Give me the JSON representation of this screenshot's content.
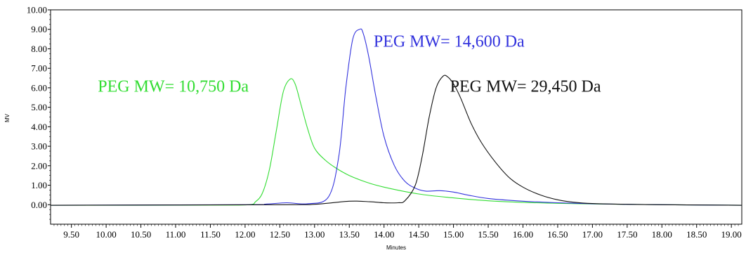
{
  "chart_data": {
    "type": "line",
    "title": "",
    "xlabel": "Minutes",
    "ylabel": "MV",
    "xlim": [
      9.2,
      19.15
    ],
    "ylim": [
      -1.0,
      10.0
    ],
    "x_ticks": [
      9.5,
      10.0,
      10.5,
      11.0,
      11.5,
      12.0,
      12.5,
      13.0,
      13.5,
      14.0,
      14.5,
      15.0,
      15.5,
      16.0,
      16.5,
      17.0,
      17.5,
      18.0,
      18.5,
      19.0
    ],
    "x_tick_labels": [
      "9.50",
      "10.00",
      "10.50",
      "11.00",
      "11.50",
      "12.00",
      "12.50",
      "13.00",
      "13.50",
      "14.00",
      "14.50",
      "15.00",
      "15.50",
      "16.00",
      "16.50",
      "17.00",
      "17.50",
      "18.00",
      "18.50",
      "19.00"
    ],
    "y_ticks": [
      0,
      1,
      2,
      3,
      4,
      5,
      6,
      7,
      8,
      9,
      10
    ],
    "y_tick_labels": [
      "0.00",
      "1.00",
      "2.00",
      "3.00",
      "4.00",
      "5.00",
      "6.00",
      "7.00",
      "8.00",
      "9.00",
      "10.00"
    ],
    "grid": false,
    "legend": "none",
    "series": [
      {
        "color": "#33dd33",
        "x": [
          9.2,
          11.5,
          12.05,
          12.15,
          12.25,
          12.35,
          12.45,
          12.55,
          12.65,
          12.72,
          12.8,
          12.9,
          13.0,
          13.15,
          13.3,
          13.5,
          13.75,
          14.0,
          14.5,
          15.0,
          15.5,
          16.0,
          16.5,
          17.0,
          17.5,
          18.0,
          19.15
        ],
        "y": [
          -0.03,
          -0.02,
          0.0,
          0.15,
          0.6,
          1.8,
          3.8,
          5.8,
          6.45,
          6.2,
          5.2,
          3.9,
          2.9,
          2.3,
          1.9,
          1.5,
          1.15,
          0.9,
          0.55,
          0.35,
          0.2,
          0.12,
          0.07,
          0.04,
          0.02,
          0.0,
          -0.03
        ]
      },
      {
        "color": "#3333dd",
        "x": [
          9.2,
          12.0,
          12.3,
          12.6,
          12.9,
          13.2,
          13.35,
          13.45,
          13.55,
          13.65,
          13.7,
          13.78,
          13.88,
          14.0,
          14.15,
          14.3,
          14.45,
          14.6,
          14.8,
          15.0,
          15.2,
          15.5,
          16.0,
          16.5,
          17.0,
          17.5,
          18.0,
          19.15
        ],
        "y": [
          -0.03,
          0.0,
          0.03,
          0.1,
          0.05,
          0.4,
          2.5,
          6.0,
          8.5,
          9.0,
          8.8,
          7.6,
          5.6,
          3.5,
          2.0,
          1.2,
          0.85,
          0.7,
          0.72,
          0.65,
          0.5,
          0.32,
          0.18,
          0.1,
          0.05,
          0.02,
          0.0,
          -0.03
        ]
      },
      {
        "color": "#111111",
        "x": [
          9.2,
          12.5,
          13.0,
          13.5,
          13.8,
          14.0,
          14.2,
          14.3,
          14.45,
          14.55,
          14.65,
          14.75,
          14.85,
          14.92,
          15.0,
          15.1,
          15.25,
          15.4,
          15.6,
          15.8,
          16.0,
          16.25,
          16.5,
          16.75,
          17.0,
          17.5,
          18.0,
          19.15
        ],
        "y": [
          -0.03,
          0.0,
          0.02,
          0.18,
          0.15,
          0.1,
          0.1,
          0.2,
          1.0,
          2.5,
          4.5,
          6.0,
          6.6,
          6.55,
          6.2,
          5.5,
          4.2,
          3.2,
          2.2,
          1.4,
          0.9,
          0.5,
          0.25,
          0.12,
          0.06,
          0.02,
          0.0,
          -0.03
        ]
      }
    ],
    "annotations": [
      {
        "text": "PEG MW= 10,750 Da",
        "color": "#33dd33",
        "x": 9.88,
        "y": 5.8
      },
      {
        "text": "PEG MW= 14,600 Da",
        "color": "#3333dd",
        "x": 13.85,
        "y": 8.1
      },
      {
        "text": "PEG MW= 29,450 Da",
        "color": "#111111",
        "x": 14.95,
        "y": 5.8
      }
    ]
  }
}
